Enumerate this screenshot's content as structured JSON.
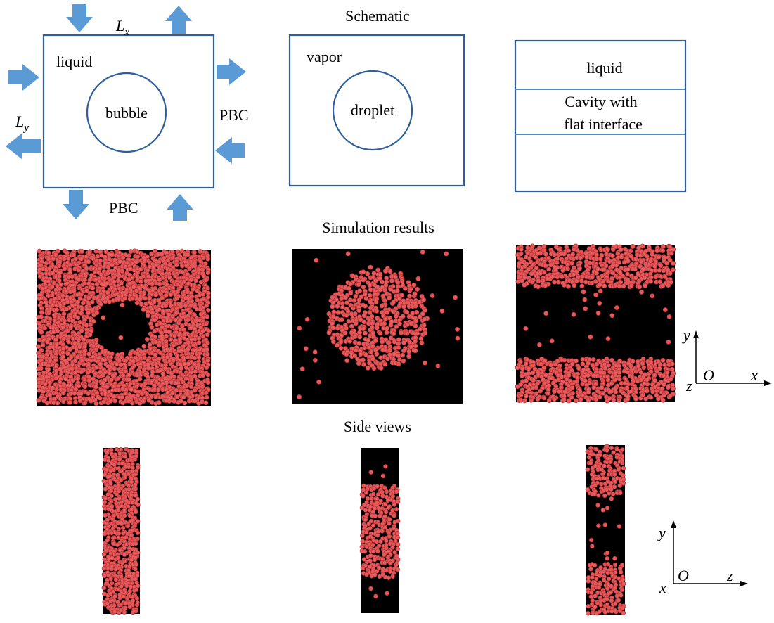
{
  "headings": {
    "schematic": "Schematic",
    "simulation": "Simulation results",
    "side": "Side views"
  },
  "schematic": {
    "panel1": {
      "fluid_label": "liquid",
      "inclusion_label": "bubble",
      "lx": "L",
      "lx_sub": "x",
      "ly": "L",
      "ly_sub": "y",
      "pbc_right": "PBC",
      "pbc_bottom": "PBC"
    },
    "panel2": {
      "fluid_label": "vapor",
      "inclusion_label": "droplet"
    },
    "panel3": {
      "top_label": "liquid",
      "middle_line1": "Cavity with",
      "middle_line2": "flat interface"
    }
  },
  "axes_top": {
    "vertical": "y",
    "origin": "O",
    "horizontal": "x",
    "depth": "z"
  },
  "axes_bottom": {
    "vertical": "y",
    "origin": "O",
    "horizontal": "z",
    "depth": "x"
  },
  "colors": {
    "particle": "#e8585a",
    "particle_edge": "#a83032",
    "background": "#000000",
    "box": "#2e5f9a",
    "arrow": "#5b9bd5"
  }
}
